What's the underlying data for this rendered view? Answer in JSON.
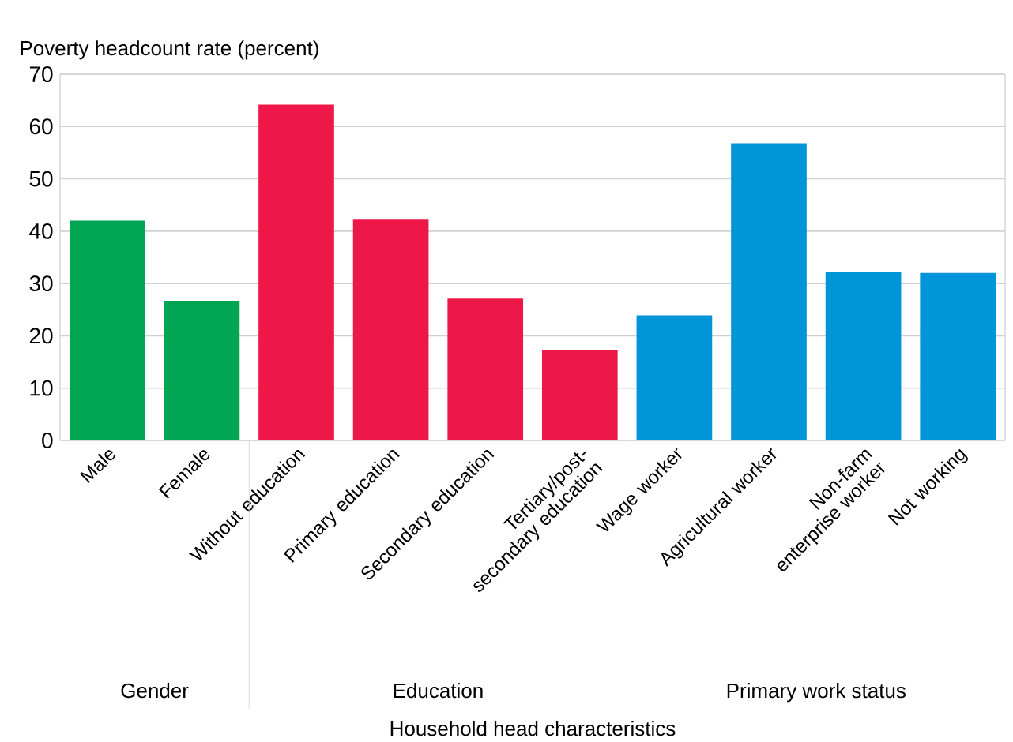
{
  "chart_data": {
    "type": "bar",
    "ylabel": "Poverty headcount rate (percent)",
    "categories": [
      "Male",
      "Female",
      "Without education",
      "Primary education",
      "Secondary education",
      "Tertiary/post-secondary education",
      "Wage worker",
      "Agricultural worker",
      "Non-farm enterprise worker",
      "Not working"
    ],
    "values": [
      42,
      26.7,
      64.2,
      42.2,
      27.1,
      17.2,
      23.9,
      56.8,
      32.3,
      32.0
    ],
    "colors": [
      "#00a651",
      "#00a651",
      "#ed1847",
      "#ed1847",
      "#ed1847",
      "#ed1847",
      "#0095d9",
      "#0095d9",
      "#0095d9",
      "#0095d9"
    ],
    "annotations": [
      "Gender",
      "Education",
      "Primary work status",
      "Household head characteristics"
    ],
    "ylim": [
      0,
      70
    ],
    "yticks": [
      0,
      10,
      20,
      30,
      40,
      50,
      60,
      70
    ],
    "grid": "y"
  }
}
